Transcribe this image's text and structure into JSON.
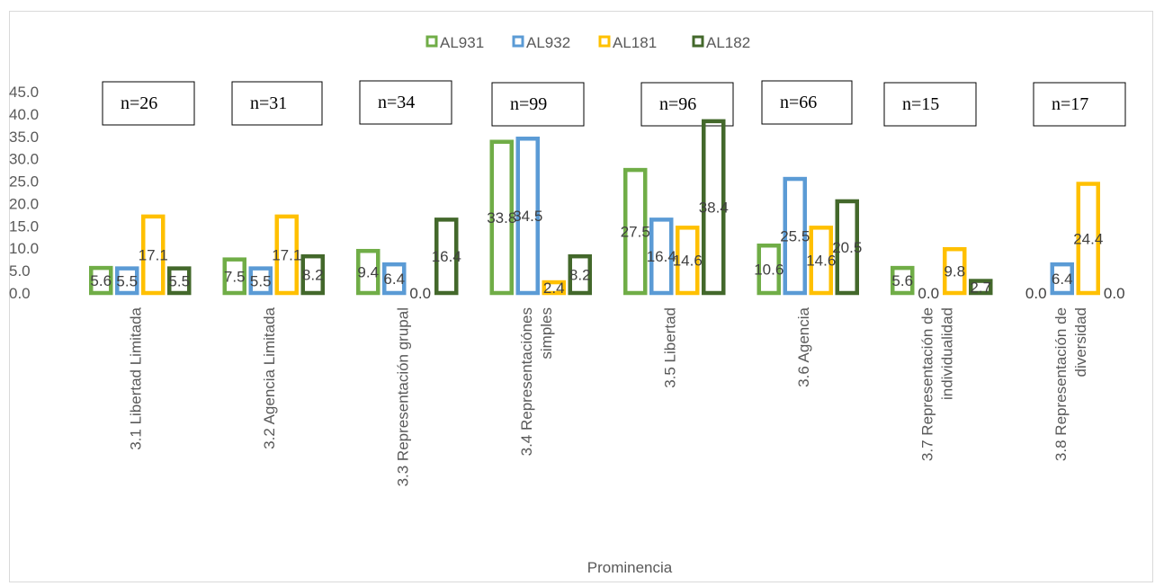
{
  "chart_data": {
    "type": "bar",
    "xlabel": "Prominencia",
    "ylabel": "",
    "ylim": [
      0,
      45
    ],
    "yticks": [
      "0.0",
      "5.0",
      "10.0",
      "15.0",
      "20.0",
      "25.0",
      "30.0",
      "35.0",
      "40.0",
      "45.0"
    ],
    "grid": false,
    "legend_position": "top",
    "bar_style": "outlined",
    "categories": [
      [
        "3.1 Libertad Limitada"
      ],
      [
        "3.2 Agencia Limitada"
      ],
      [
        "3.3 Representación grupal"
      ],
      [
        "3.4 Representaciónes",
        "simples"
      ],
      [
        "3.5 Libertad"
      ],
      [
        "3.6 Agencia"
      ],
      [
        "3.7 Representación de",
        "individualidad"
      ],
      [
        "3.8 Representación de",
        "diversidad"
      ]
    ],
    "n_labels": [
      "n=26",
      "n=31",
      "n=34",
      "n=99",
      "n=96",
      "n=66",
      "n=15",
      "n=17"
    ],
    "series": [
      {
        "name": "AL931",
        "color": "#70ad47",
        "values": [
          5.6,
          7.5,
          9.4,
          33.8,
          27.5,
          10.6,
          5.6,
          0.0
        ],
        "labels": [
          "5.6",
          "7.5",
          "9.4",
          "33.8",
          "27.5",
          "10.6",
          "5.6",
          "0.0"
        ]
      },
      {
        "name": "AL932",
        "color": "#5b9bd5",
        "values": [
          5.5,
          5.5,
          6.4,
          34.5,
          16.4,
          25.5,
          0.0,
          6.4
        ],
        "labels": [
          "5.5",
          "5.5",
          "6.4",
          "34.5",
          "16.4",
          "25.5",
          "0.0",
          "6.4"
        ]
      },
      {
        "name": "AL181",
        "color": "#ffc000",
        "values": [
          17.1,
          17.1,
          0.0,
          2.4,
          14.6,
          14.6,
          9.8,
          24.4
        ],
        "labels": [
          "17.1",
          "17.1",
          "0.0",
          "2.4",
          "14.6",
          "14.6",
          "9.8",
          "24.4"
        ]
      },
      {
        "name": "AL182",
        "color": "#43682b",
        "values": [
          5.5,
          8.2,
          16.4,
          8.2,
          38.4,
          20.5,
          2.7,
          0.0
        ],
        "labels": [
          "5.5",
          "8.2",
          "16.4",
          "8.2",
          "38.4",
          "20.5",
          "2.7",
          "0.0"
        ]
      }
    ]
  }
}
